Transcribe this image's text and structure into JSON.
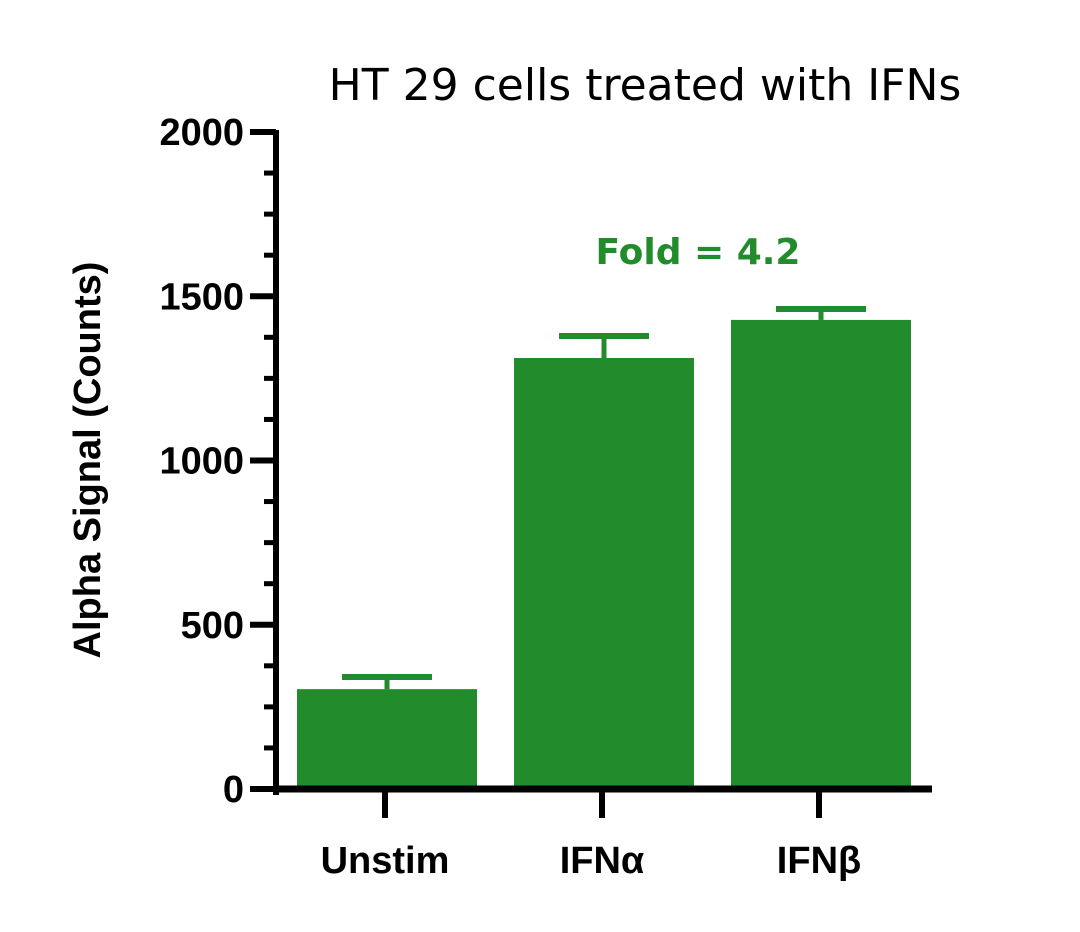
{
  "chart_data": {
    "type": "bar",
    "title": "HT 29 cells treated with IFNs",
    "xlabel": "",
    "ylabel": "Alpha Signal (Counts)",
    "categories": [
      "Unstim",
      "IFNα",
      "IFNβ"
    ],
    "values": [
      304,
      1312,
      1428
    ],
    "error_upper": [
      341,
      1379,
      1461
    ],
    "error": [
      37,
      67,
      33
    ],
    "ylim": [
      0,
      2000
    ],
    "yticks": [
      0,
      500,
      1000,
      1500,
      2000
    ],
    "minor_ticks_per_major": 4,
    "grid": false,
    "legend": null,
    "bar_color": "#228B2B",
    "annotations": [
      {
        "text": "Fold = 4.2",
        "color": "#228B2B",
        "position": "above IFNα/IFNβ bars"
      }
    ]
  },
  "title": "HT 29 cells treated with IFNs",
  "y_axis": {
    "label": "Alpha Signal (Counts)",
    "ticks": [
      "0",
      "500",
      "1000",
      "1500",
      "2000"
    ]
  },
  "x_axis": {
    "categories": [
      "Unstim",
      "IFNα",
      "IFNβ"
    ]
  },
  "annotation": {
    "text": "Fold = 4.2",
    "color": "#228B2B"
  },
  "colors": {
    "bar": "#228B2B",
    "axis": "#000000"
  }
}
